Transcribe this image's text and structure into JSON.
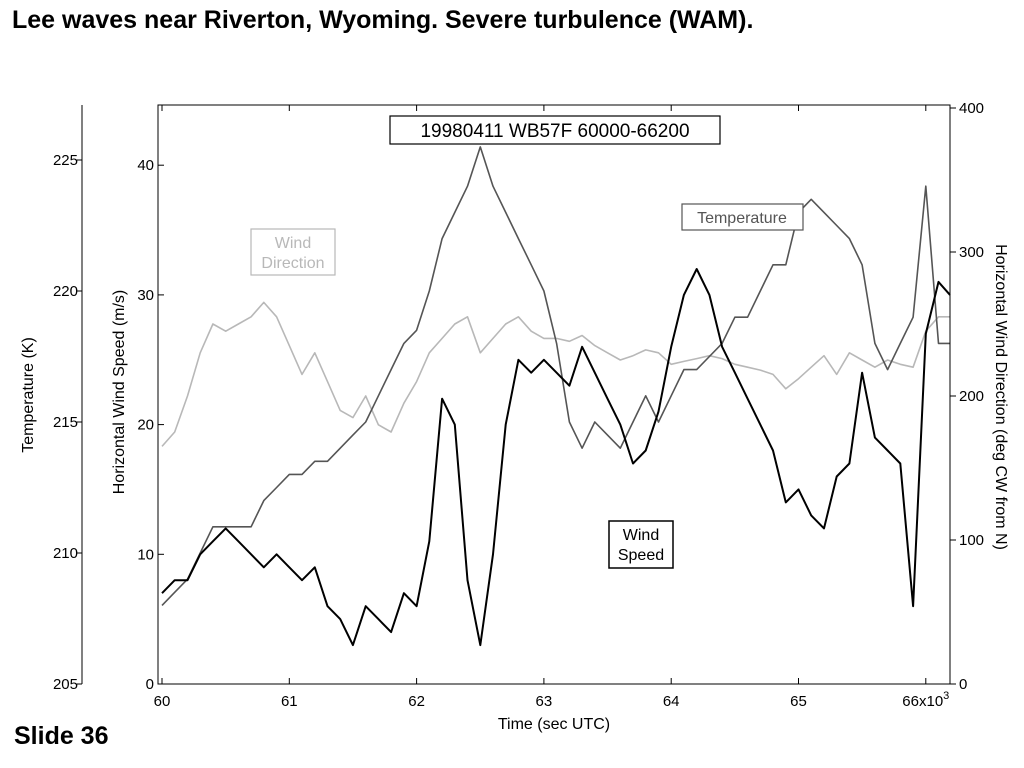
{
  "slide": {
    "title": "Lee waves near Riverton, Wyoming. Severe turbulence (WAM).",
    "number": "Slide 36"
  },
  "colors": {
    "wind_speed": "#000000",
    "temperature": "#555555",
    "wind_direction": "#b8b8b8",
    "background": "#ffffff"
  },
  "chart_data": {
    "type": "line",
    "title": "19980411 WB57F 60000-66200",
    "xlabel": "Time  (sec UTC)",
    "x_ticks": [
      "60",
      "61",
      "62",
      "63",
      "64",
      "65",
      "66x10"
    ],
    "x_tick_suffix_superscript": "3",
    "xlim": [
      60000,
      66200
    ],
    "y_axes": {
      "left_outer": {
        "label": "Temperature  (K)",
        "ylim": [
          205,
          227
        ],
        "ticks": [
          "205",
          "210",
          "215",
          "220",
          "225"
        ]
      },
      "left_inner": {
        "label": "Horizontal Wind Speed  (m/s)",
        "ylim": [
          0,
          44
        ],
        "ticks": [
          "0",
          "10",
          "20",
          "30",
          "40"
        ]
      },
      "right": {
        "label": "Horizontal Wind Direction  (deg CW from N)",
        "ylim": [
          0,
          400
        ],
        "ticks": [
          "0",
          "100",
          "200",
          "300",
          "400"
        ]
      }
    },
    "annotations": {
      "wind_direction": [
        "Wind",
        "Direction"
      ],
      "temperature": "Temperature",
      "wind_speed": [
        "Wind",
        "Speed"
      ]
    },
    "grid": false,
    "series": [
      {
        "axis": "left_inner",
        "color": "#000000",
        "x": [
          60000,
          60100,
          60200,
          60300,
          60400,
          60500,
          60600,
          60700,
          60800,
          60900,
          61000,
          61100,
          61200,
          61300,
          61400,
          61500,
          61600,
          61700,
          61800,
          61900,
          62000,
          62100,
          62200,
          62300,
          62400,
          62500,
          62600,
          62700,
          62800,
          62900,
          63000,
          63100,
          63200,
          63300,
          63400,
          63500,
          63600,
          63700,
          63800,
          63900,
          64000,
          64100,
          64200,
          64300,
          64400,
          64500,
          64600,
          64700,
          64800,
          64900,
          65000,
          65100,
          65200,
          65300,
          65400,
          65500,
          65600,
          65700,
          65800,
          65900,
          66000,
          66100,
          66200
        ],
        "values": [
          7,
          8,
          8,
          10,
          11,
          12,
          11,
          10,
          9,
          10,
          9,
          8,
          9,
          6,
          5,
          3,
          6,
          5,
          4,
          7,
          6,
          11,
          22,
          20,
          8,
          3,
          10,
          20,
          25,
          24,
          25,
          24,
          23,
          26,
          24,
          22,
          20,
          17,
          18,
          21,
          26,
          30,
          32,
          30,
          26,
          24,
          22,
          20,
          18,
          14,
          15,
          13,
          12,
          16,
          17,
          24,
          19,
          18,
          17,
          6,
          27,
          31,
          30
        ]
      },
      {
        "axis": "left_outer",
        "color": "#555555",
        "x": [
          60000,
          60100,
          60200,
          60300,
          60400,
          60500,
          60600,
          60700,
          60800,
          60900,
          61000,
          61100,
          61200,
          61300,
          61400,
          61500,
          61600,
          61700,
          61800,
          61900,
          62000,
          62100,
          62200,
          62300,
          62400,
          62500,
          62600,
          62700,
          62800,
          62900,
          63000,
          63100,
          63200,
          63300,
          63400,
          63500,
          63600,
          63700,
          63800,
          63900,
          64000,
          64100,
          64200,
          64300,
          64400,
          64500,
          64600,
          64700,
          64800,
          64900,
          65000,
          65100,
          65200,
          65300,
          65400,
          65500,
          65600,
          65700,
          65800,
          65900,
          66000,
          66100,
          66200
        ],
        "values": [
          208,
          208.5,
          209,
          210,
          211,
          211,
          211,
          211,
          212,
          212.5,
          213,
          213,
          213.5,
          213.5,
          214,
          214.5,
          215,
          216,
          217,
          218,
          218.5,
          220,
          222,
          223,
          224,
          225.5,
          224,
          223,
          222,
          221,
          220,
          218,
          215,
          214,
          215,
          214.5,
          214,
          215,
          216,
          215,
          216,
          217,
          217,
          217.5,
          218,
          219,
          219,
          220,
          221,
          221,
          223,
          223.5,
          223,
          222.5,
          222,
          221,
          218,
          217,
          218,
          219,
          224,
          218,
          218
        ]
      },
      {
        "axis": "right",
        "color": "#b8b8b8",
        "x": [
          60000,
          60100,
          60200,
          60300,
          60400,
          60500,
          60600,
          60700,
          60800,
          60900,
          61000,
          61100,
          61200,
          61300,
          61400,
          61500,
          61600,
          61700,
          61800,
          61900,
          62000,
          62100,
          62200,
          62300,
          62400,
          62500,
          62600,
          62700,
          62800,
          62900,
          63000,
          63100,
          63200,
          63300,
          63400,
          63500,
          63600,
          63700,
          63800,
          63900,
          64000,
          64100,
          64200,
          64300,
          64400,
          64500,
          64600,
          64700,
          64800,
          64900,
          65000,
          65100,
          65200,
          65300,
          65400,
          65500,
          65600,
          65700,
          65800,
          65900,
          66000,
          66100,
          66200
        ],
        "values": [
          165,
          175,
          200,
          230,
          250,
          245,
          250,
          255,
          265,
          255,
          235,
          215,
          230,
          210,
          190,
          185,
          200,
          180,
          175,
          195,
          210,
          230,
          240,
          250,
          255,
          230,
          240,
          250,
          255,
          245,
          240,
          240,
          238,
          242,
          235,
          230,
          225,
          228,
          232,
          230,
          222,
          224,
          226,
          228,
          226,
          222,
          220,
          218,
          215,
          205,
          212,
          220,
          228,
          215,
          230,
          225,
          220,
          225,
          222,
          220,
          245,
          255,
          255
        ]
      }
    ]
  }
}
